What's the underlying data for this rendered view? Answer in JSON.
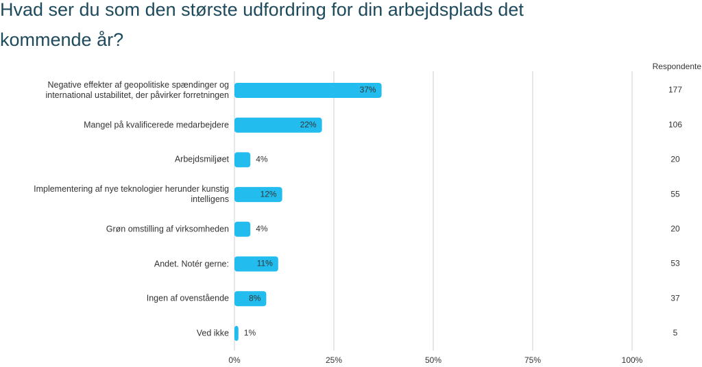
{
  "chart_data": {
    "type": "bar",
    "orientation": "horizontal",
    "title": "Hvad ser du som den største udfordring for din arbejdsplads det kommende år?",
    "categories": [
      "Negative effekter af geopolitiske spændinger og international ustabilitet, der påvirker forretningen",
      "Mangel på kvalificerede medarbejdere",
      "Arbejdsmiljøet",
      "Implementering af nye teknologier herunder kunstig intelligens",
      "Grøn omstilling af virksomheden",
      "Andet. Notér gerne:",
      "Ingen af ovenstående",
      "Ved ikke"
    ],
    "values": [
      37,
      22,
      4,
      12,
      4,
      11,
      8,
      1
    ],
    "value_labels": [
      "37%",
      "22%",
      "4%",
      "12%",
      "4%",
      "11%",
      "8%",
      "1%"
    ],
    "color": "#22bdee",
    "xlim": [
      0,
      100
    ],
    "xticks": [
      {
        "value": 0,
        "label": "0%"
      },
      {
        "value": 25,
        "label": "25%"
      },
      {
        "value": 50,
        "label": "50%"
      },
      {
        "value": 75,
        "label": "75%"
      },
      {
        "value": 100,
        "label": "100%"
      }
    ],
    "grid": true,
    "respondents_header": "Respondente",
    "respondents": [
      177,
      106,
      20,
      55,
      20,
      53,
      37,
      5
    ]
  }
}
